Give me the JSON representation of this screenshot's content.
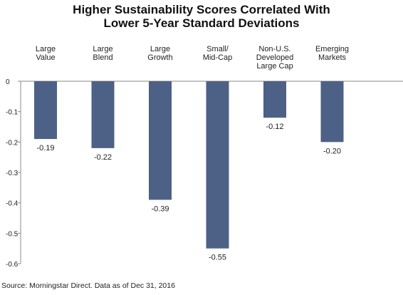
{
  "chart_data": {
    "type": "bar",
    "title_lines": [
      "Higher Sustainability Scores Correlated With",
      "Lower 5-Year Standard Deviations"
    ],
    "categories": [
      [
        "Large",
        "Value"
      ],
      [
        "Large",
        "Blend"
      ],
      [
        "Large",
        "Growth"
      ],
      [
        "Small/",
        "Mid-Cap"
      ],
      [
        "Non-U.S.",
        "Developed",
        "Large Cap"
      ],
      [
        "Emerging",
        "Markets"
      ]
    ],
    "values": [
      -0.19,
      -0.22,
      -0.39,
      -0.55,
      -0.12,
      -0.2
    ],
    "value_labels": [
      "-0.19",
      "-0.22",
      "-0.39",
      "-0.55",
      "-0.12",
      "-0.20"
    ],
    "y_ticks": [
      0,
      -0.1,
      -0.2,
      -0.3,
      -0.4,
      -0.5,
      -0.6
    ],
    "y_tick_labels": [
      "0",
      "-0.1",
      "-0.2",
      "-0.3",
      "-0.4",
      "-0.5",
      "-0.6"
    ],
    "ylim": [
      -0.6,
      0
    ],
    "xlabel": "",
    "ylabel": "",
    "grid": false,
    "bar_color": "#4d6187",
    "source": "Source: Morningstar Direct. Data as of Dec 31, 2016"
  }
}
